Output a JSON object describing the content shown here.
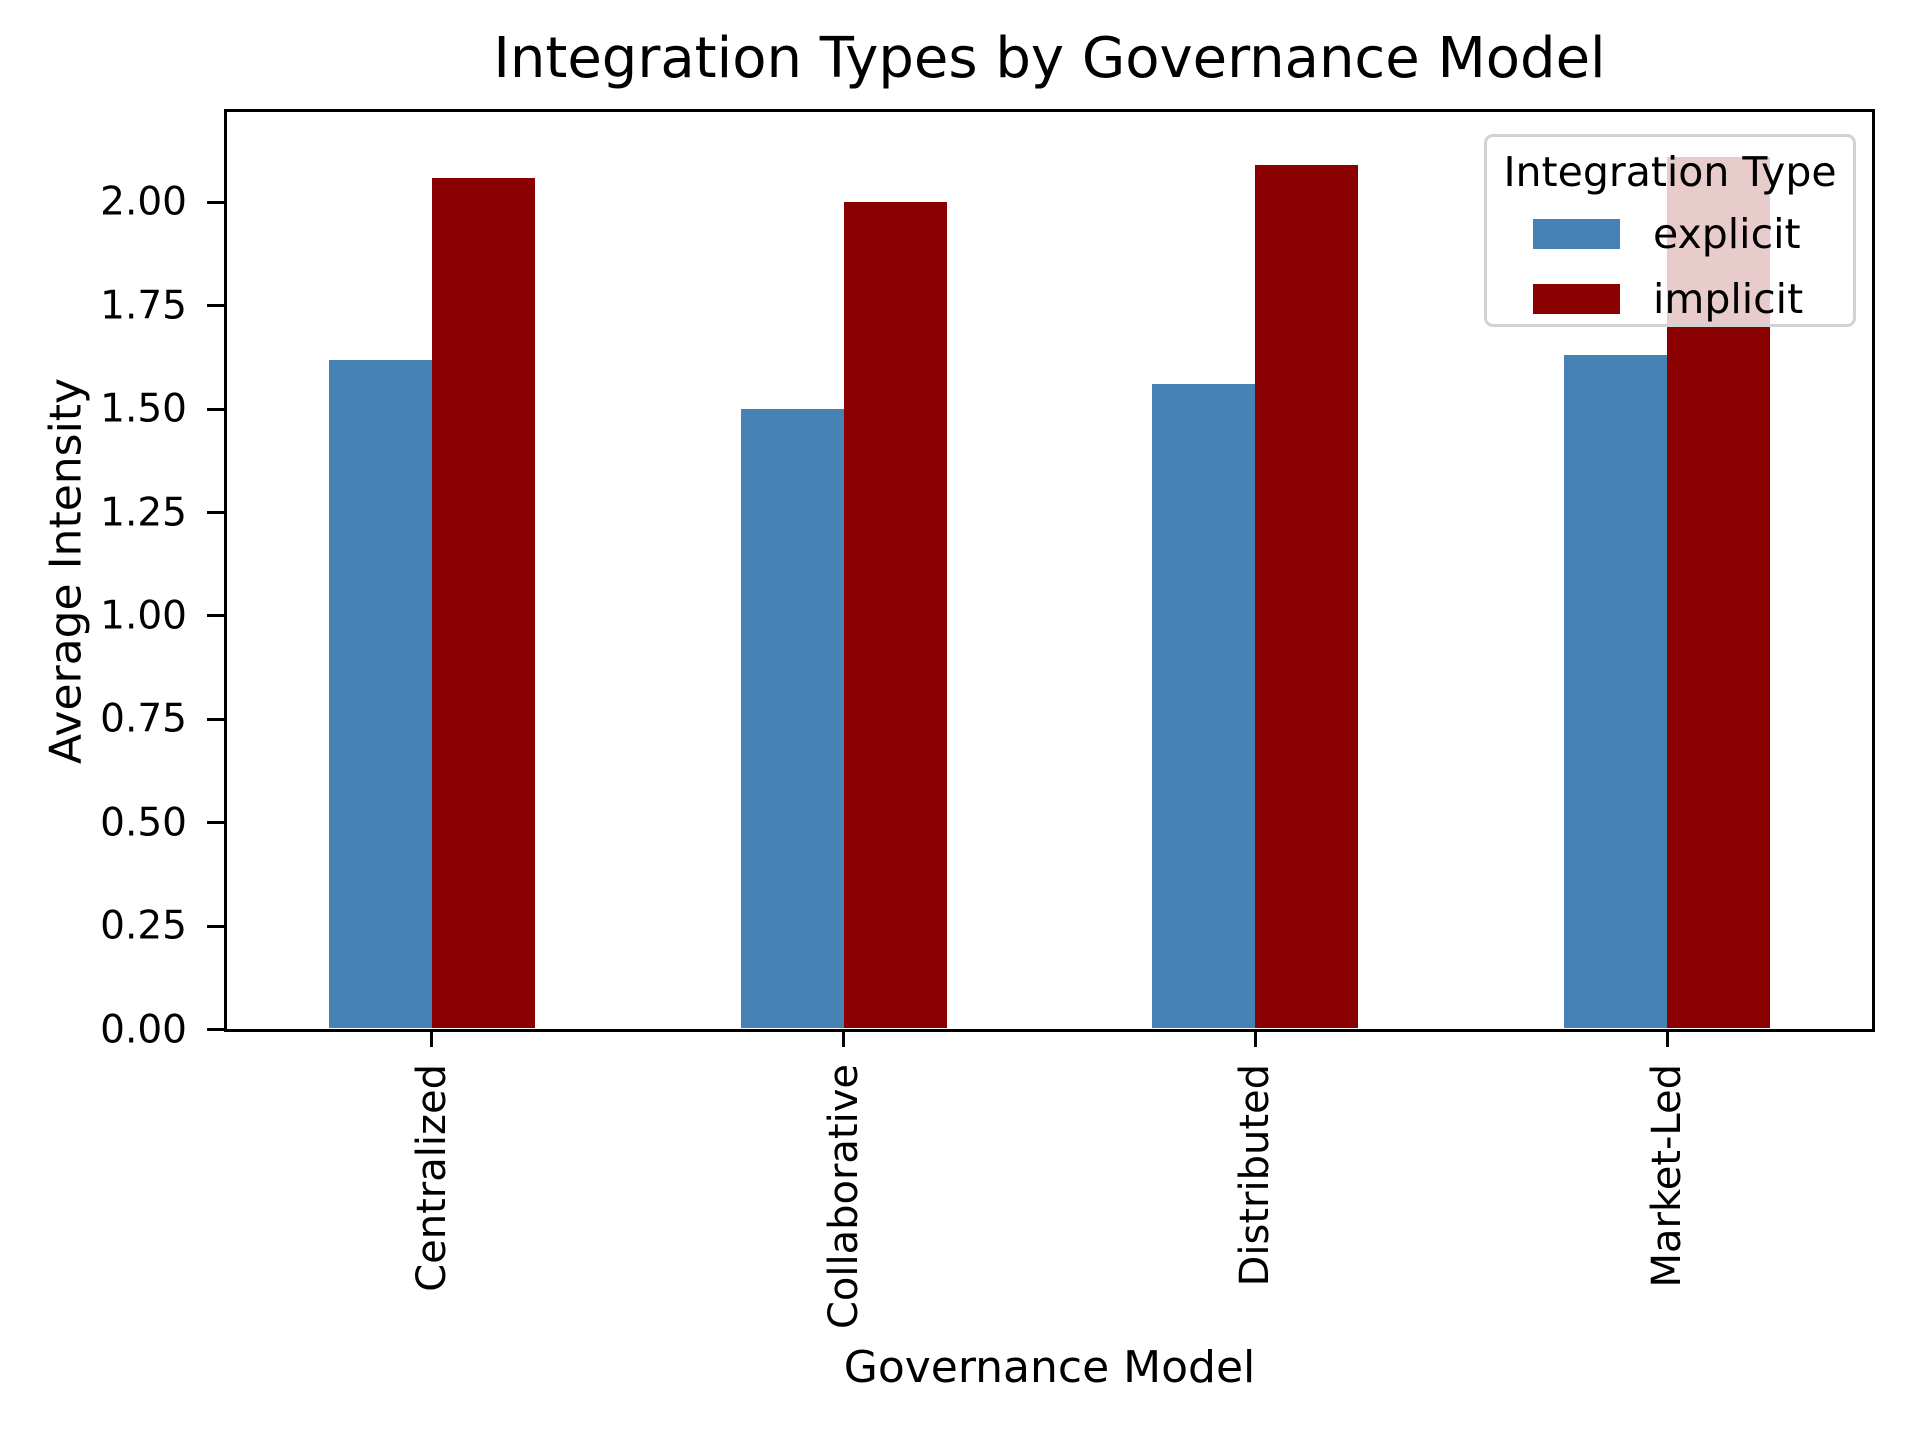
{
  "chart_data": {
    "type": "bar",
    "title": "Integration Types by Governance Model",
    "xlabel": "Governance Model",
    "ylabel": "Average Intensity",
    "categories": [
      "Centralized",
      "Collaborative",
      "Distributed",
      "Market-Led"
    ],
    "series": [
      {
        "name": "explicit",
        "color": "#4682B4",
        "values": [
          1.62,
          1.5,
          1.56,
          1.63
        ]
      },
      {
        "name": "implicit",
        "color": "#8B0000",
        "values": [
          2.06,
          2.0,
          2.09,
          2.11
        ]
      }
    ],
    "ylim": [
      0,
      2.22
    ],
    "yticks": [
      0.0,
      0.25,
      0.5,
      0.75,
      1.0,
      1.25,
      1.5,
      1.75,
      2.0
    ],
    "ytick_decimals": 2,
    "xtick_rotation_deg": 90,
    "grid": false,
    "legend": {
      "title": "Integration Type",
      "position": "upper right",
      "labels": [
        "explicit",
        "implicit"
      ]
    },
    "colors": {
      "axes": "#000000",
      "text": "#000000",
      "background": "#ffffff",
      "legend_border": "#d2d2d2"
    }
  }
}
